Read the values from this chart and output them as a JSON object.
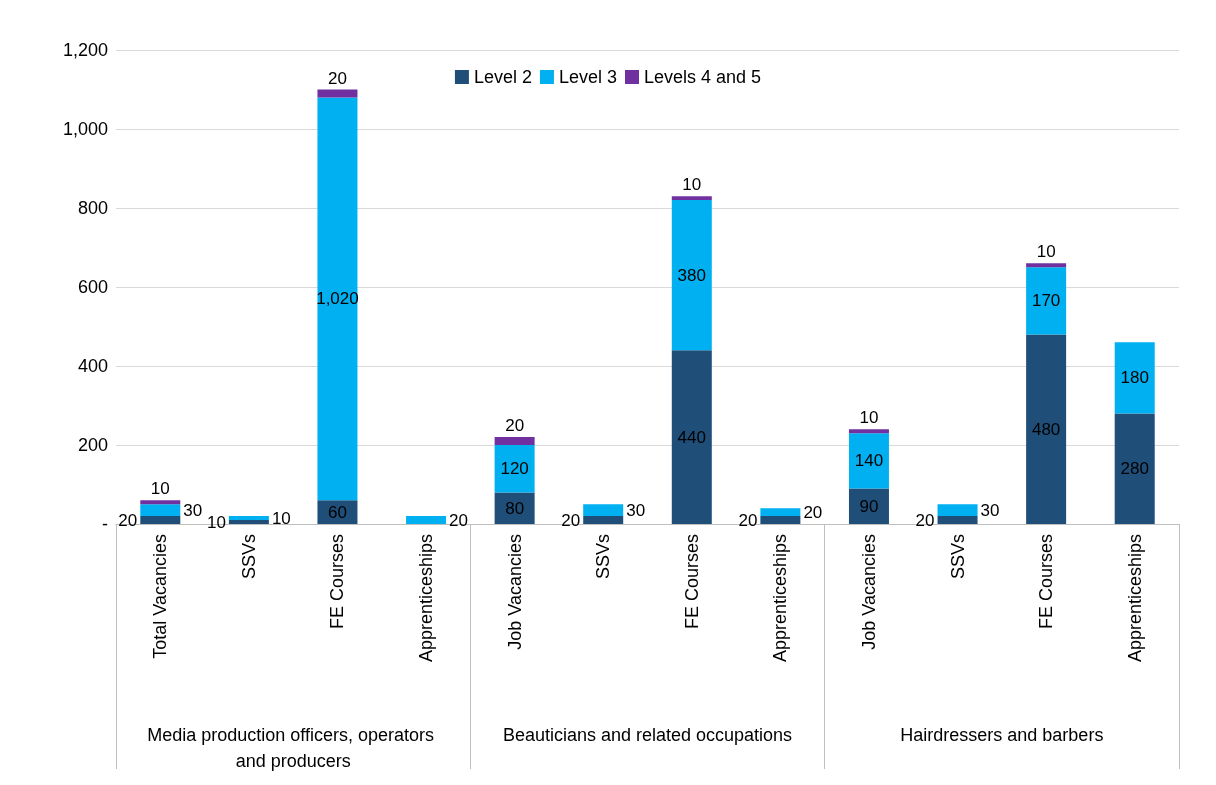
{
  "chart_data": {
    "type": "bar",
    "stacked": true,
    "categories": [
      "Total Vacancies",
      "SSVs",
      "FE Courses",
      "Apprenticeships",
      "Job Vacancies",
      "SSVs",
      "FE Courses",
      "Apprenticeships",
      "Job Vacancies",
      "SSVs",
      "FE Courses",
      "Apprenticeships"
    ],
    "series": [
      {
        "name": "Level 2",
        "color": "#1f4e79",
        "values": [
          20,
          10,
          60,
          null,
          80,
          20,
          440,
          20,
          90,
          20,
          480,
          280
        ],
        "value_labels": [
          "20",
          "10",
          "60",
          null,
          "80",
          "20",
          "440",
          "20",
          "90",
          "20",
          "480",
          "280"
        ]
      },
      {
        "name": "Level 3",
        "color": "#00b0f0",
        "values": [
          30,
          10,
          1020,
          20,
          120,
          30,
          380,
          20,
          140,
          30,
          170,
          180
        ],
        "value_labels": [
          "30",
          "10",
          "1,020",
          "20",
          "120",
          "30",
          "380",
          "20",
          "140",
          "30",
          "170",
          "180"
        ]
      },
      {
        "name": "Levels 4 and 5",
        "color": "#7030a0",
        "values": [
          10,
          null,
          20,
          null,
          20,
          null,
          10,
          null,
          10,
          null,
          10,
          null
        ],
        "value_labels": [
          "10",
          null,
          "20",
          null,
          "20",
          null,
          "10",
          null,
          "10",
          null,
          "10",
          null
        ]
      }
    ],
    "ylim": [
      0,
      1200
    ],
    "yticks": [
      {
        "value": 0,
        "label": "-"
      },
      200,
      400,
      600,
      800,
      {
        "value": 1000,
        "label": "1,000"
      },
      {
        "value": 1200,
        "label": "1,200"
      }
    ],
    "grid": "y",
    "legend": "top",
    "annotations": [
      "Media production officers, operators and producers",
      "Beauticians and related occupations",
      "Hairdressers and barbers"
    ]
  }
}
